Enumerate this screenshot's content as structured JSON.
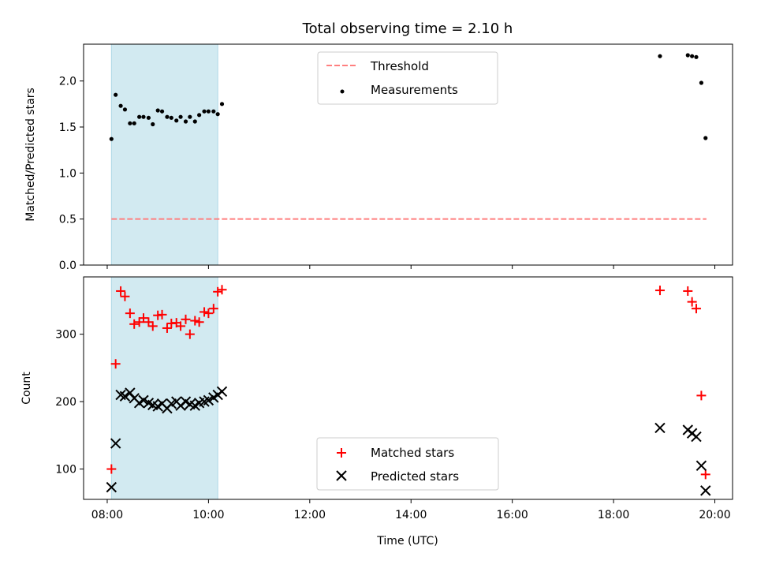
{
  "title": "Total observing time = 2.10 h",
  "colors": {
    "threshold": "#ff7f7f",
    "measurement": "#000000",
    "matched": "#ff0000",
    "predicted": "#000000",
    "span": "#add8e6"
  },
  "chart_data": [
    {
      "type": "scatter",
      "ylabel": "Matched/Predicted stars",
      "xlim": [
        "07:32",
        "20:21"
      ],
      "ylim": [
        0,
        2.4
      ],
      "yticks": [
        0.0,
        0.5,
        1.0,
        1.5,
        2.0
      ],
      "ytick_labels": [
        "0.0",
        "0.5",
        "1.0",
        "1.5",
        "2.0"
      ],
      "shaded_span": [
        "08:05",
        "10:11"
      ],
      "legend": {
        "placement": "upper center",
        "entries": [
          "Threshold",
          "Measurements"
        ]
      },
      "threshold": {
        "name": "Threshold",
        "y": 0.5,
        "x": [
          "08:05",
          "19:50"
        ],
        "style": "dashed"
      },
      "series": [
        {
          "name": "Measurements",
          "marker": "dot",
          "x": [
            "08:05",
            "08:10",
            "08:16",
            "08:21",
            "08:27",
            "08:32",
            "08:38",
            "08:43",
            "08:49",
            "08:54",
            "09:00",
            "09:05",
            "09:11",
            "09:16",
            "09:22",
            "09:27",
            "09:33",
            "09:38",
            "09:44",
            "09:49",
            "09:55",
            "10:00",
            "10:06",
            "10:11",
            "10:16",
            "18:55",
            "19:28",
            "19:33",
            "19:38",
            "19:44",
            "19:49"
          ],
          "y": [
            1.37,
            1.85,
            1.73,
            1.69,
            1.54,
            1.54,
            1.61,
            1.61,
            1.6,
            1.53,
            1.68,
            1.67,
            1.61,
            1.6,
            1.57,
            1.61,
            1.56,
            1.61,
            1.56,
            1.63,
            1.67,
            1.67,
            1.67,
            1.64,
            1.75,
            2.27,
            2.28,
            2.27,
            2.26,
            1.98,
            1.38
          ]
        }
      ]
    },
    {
      "type": "scatter",
      "xlabel": "Time (UTC)",
      "ylabel": "Count",
      "xlim": [
        "07:32",
        "20:21"
      ],
      "ylim": [
        55,
        385
      ],
      "yticks": [
        100,
        200,
        300
      ],
      "ytick_labels": [
        "100",
        "200",
        "300"
      ],
      "xticks": [
        "08:00",
        "10:00",
        "12:00",
        "14:00",
        "16:00",
        "18:00",
        "20:00"
      ],
      "xtick_labels": [
        "08:00",
        "10:00",
        "12:00",
        "14:00",
        "16:00",
        "18:00",
        "20:00"
      ],
      "shaded_span": [
        "08:05",
        "10:11"
      ],
      "legend": {
        "placement": "lower center",
        "entries": [
          "Matched stars",
          "Predicted stars"
        ]
      },
      "series": [
        {
          "name": "Matched stars",
          "marker": "plus",
          "x": [
            "08:05",
            "08:10",
            "08:16",
            "08:21",
            "08:27",
            "08:32",
            "08:38",
            "08:43",
            "08:49",
            "08:54",
            "09:00",
            "09:05",
            "09:11",
            "09:16",
            "09:22",
            "09:27",
            "09:33",
            "09:38",
            "09:44",
            "09:49",
            "09:55",
            "10:00",
            "10:06",
            "10:11",
            "10:16",
            "18:55",
            "19:28",
            "19:33",
            "19:38",
            "19:44",
            "19:49"
          ],
          "y": [
            100,
            256,
            364,
            356,
            331,
            315,
            318,
            324,
            318,
            312,
            328,
            329,
            309,
            316,
            317,
            312,
            322,
            300,
            320,
            318,
            333,
            331,
            338,
            363,
            366,
            365,
            364,
            348,
            338,
            209,
            92
          ]
        },
        {
          "name": "Predicted stars",
          "marker": "x",
          "x": [
            "08:05",
            "08:10",
            "08:16",
            "08:21",
            "08:27",
            "08:32",
            "08:38",
            "08:43",
            "08:49",
            "08:54",
            "09:00",
            "09:05",
            "09:11",
            "09:16",
            "09:22",
            "09:27",
            "09:33",
            "09:38",
            "09:44",
            "09:49",
            "09:55",
            "10:00",
            "10:06",
            "10:11",
            "10:16",
            "18:55",
            "19:28",
            "19:33",
            "19:38",
            "19:44",
            "19:49"
          ],
          "y": [
            73,
            138,
            210,
            208,
            213,
            205,
            198,
            202,
            198,
            195,
            193,
            197,
            190,
            197,
            200,
            194,
            200,
            196,
            194,
            198,
            200,
            202,
            206,
            210,
            215,
            161,
            158,
            153,
            148,
            105,
            68
          ]
        }
      ]
    }
  ]
}
